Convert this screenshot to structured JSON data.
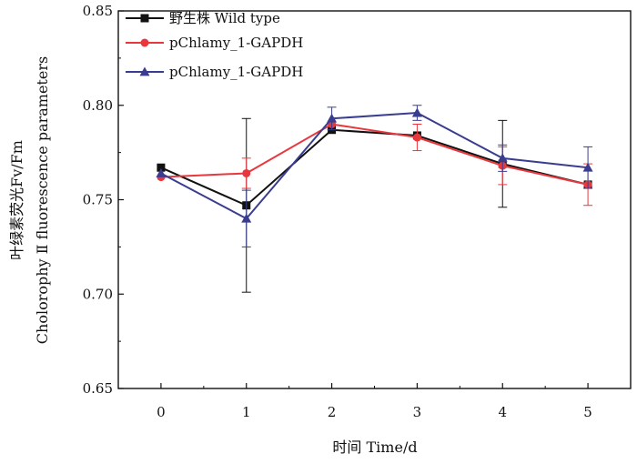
{
  "chart_data": {
    "type": "line",
    "title": "",
    "xlabel": "时间 Time/d",
    "ylabel_line1": "叶绿素荧光Fv/Fm",
    "ylabel_line2": "Cholorophy Ⅱ fluorescence parameters",
    "x": [
      0,
      1,
      2,
      3,
      4,
      5
    ],
    "x_tick_labels": [
      "0",
      "1",
      "2",
      "3",
      "4",
      "5"
    ],
    "xlim": [
      -0.5,
      5.5
    ],
    "ylim": [
      0.65,
      0.85
    ],
    "y_ticks": [
      0.65,
      0.7,
      0.75,
      0.8,
      0.85
    ],
    "y_tick_labels": [
      "0.65",
      "0.70",
      "0.75",
      "0.80",
      "0.85"
    ],
    "grid": false,
    "legend_position": "top-left",
    "series": [
      {
        "name": "野生株 Wild type",
        "color": "#111111",
        "marker": "square",
        "values": [
          0.767,
          0.747,
          0.787,
          0.784,
          0.769,
          0.758
        ],
        "error": [
          0.0,
          0.046,
          0.0,
          0.0,
          0.023,
          0.0
        ]
      },
      {
        "name": "pChlamy_1-GAPDH",
        "color": "#e8383d",
        "marker": "circle",
        "values": [
          0.762,
          0.764,
          0.79,
          0.783,
          0.768,
          0.758
        ],
        "error": [
          0.0,
          0.008,
          0.0,
          0.007,
          0.01,
          0.011
        ]
      },
      {
        "name": "pChlamy_1-GAPDH",
        "color": "#3a3d8f",
        "marker": "triangle",
        "values": [
          0.764,
          0.74,
          0.793,
          0.796,
          0.772,
          0.767
        ],
        "error": [
          0.0,
          0.015,
          0.006,
          0.004,
          0.007,
          0.011
        ]
      }
    ]
  }
}
